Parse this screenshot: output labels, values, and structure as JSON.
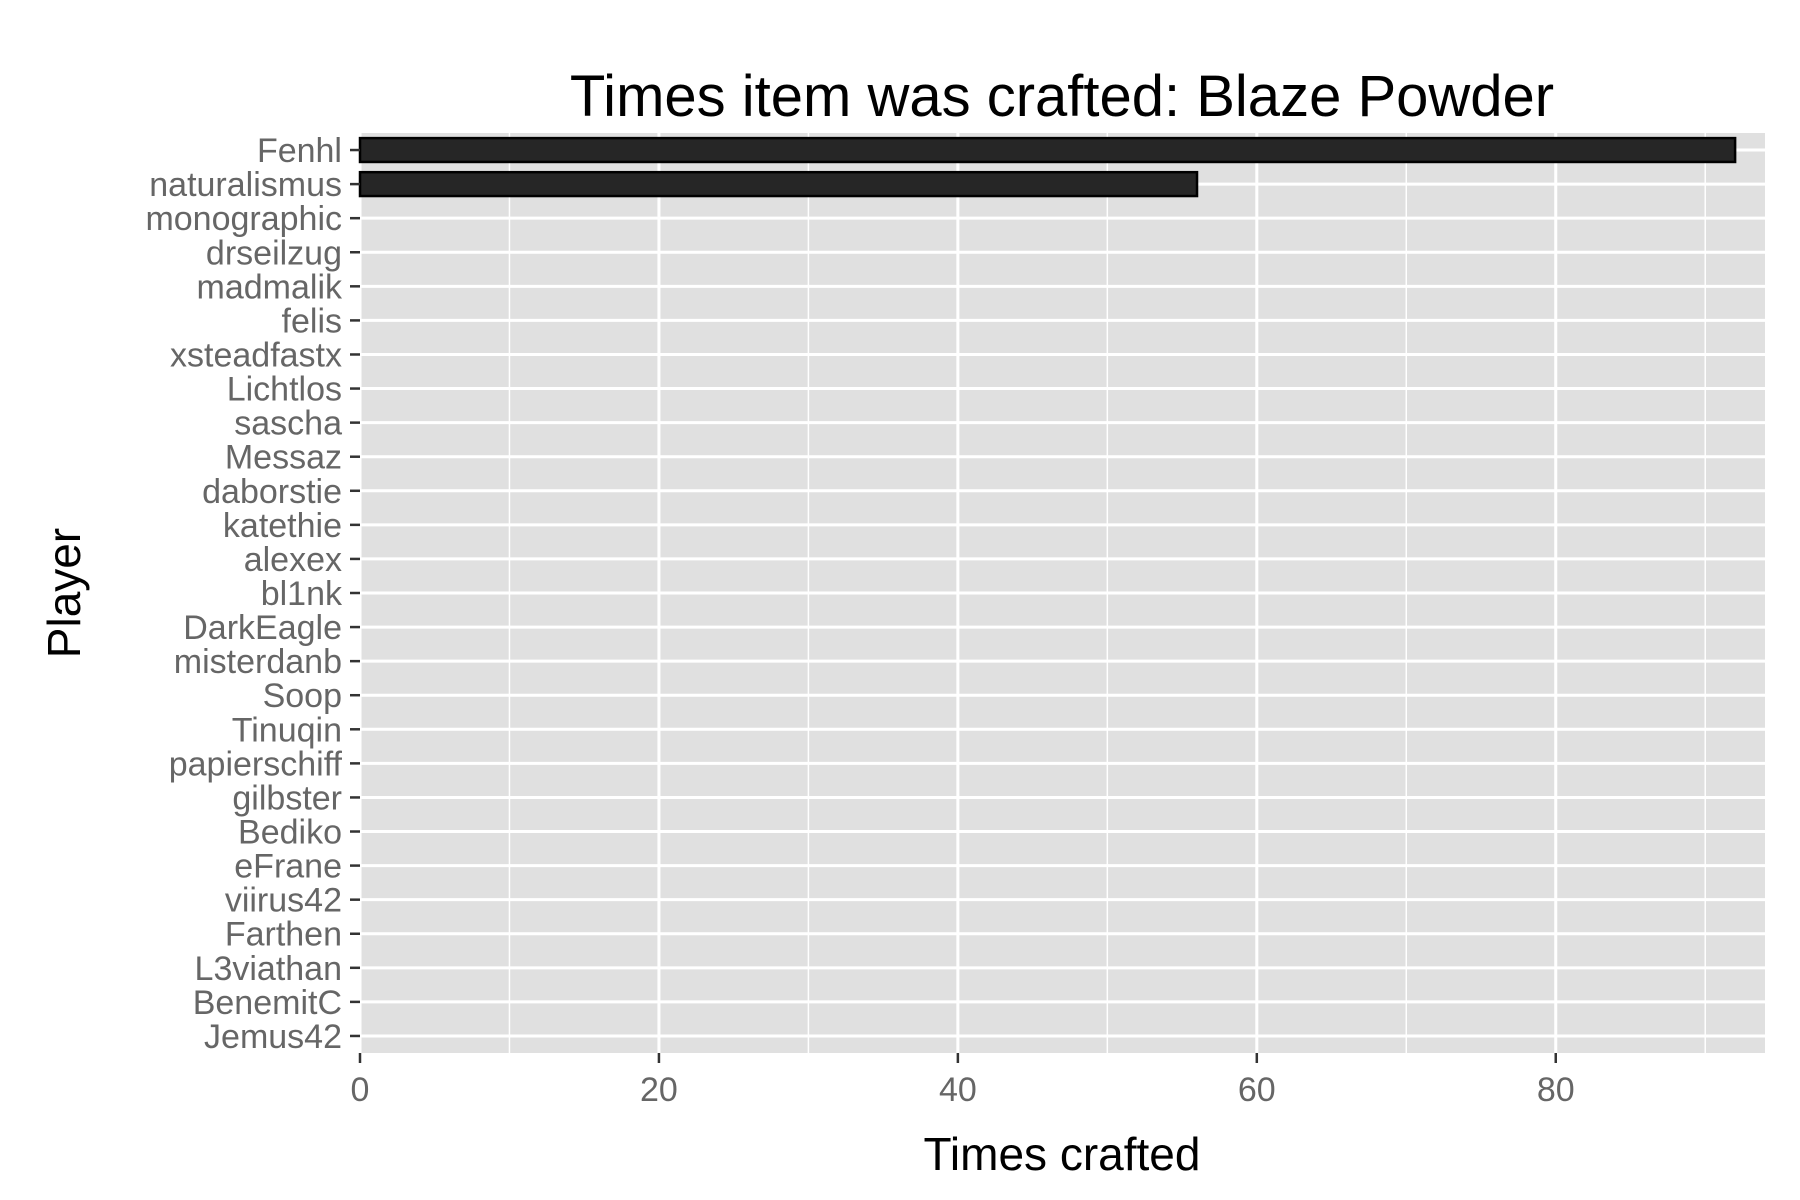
{
  "chart_data": {
    "type": "bar",
    "orientation": "horizontal",
    "title": "Times item was crafted: Blaze Powder",
    "xlabel": "Times crafted",
    "ylabel": "Player",
    "xlim": [
      0,
      94
    ],
    "xticks": [
      0,
      20,
      40,
      60,
      80
    ],
    "grid": true,
    "colors": {
      "panel": "#e0e0e0",
      "grid": "#ffffff",
      "bar_fill": "#262626",
      "bar_stroke": "#000000",
      "tick": "#333333"
    },
    "categories": [
      "Fenhl",
      "naturalismus",
      "monographic",
      "drseilzug",
      "madmalik",
      "felis",
      "xsteadfastx",
      "Lichtlos",
      "sascha",
      "Messaz",
      "daborstie",
      "katethie",
      "alexex",
      "bl1nk",
      "DarkEagle",
      "misterdanb",
      "Soop",
      "Tinuqin",
      "papierschiff",
      "gilbster",
      "Bediko",
      "eFrane",
      "viirus42",
      "Farthen",
      "L3viathan",
      "BenemitC",
      "Jemus42"
    ],
    "values": [
      92,
      56,
      0,
      0,
      0,
      0,
      0,
      0,
      0,
      0,
      0,
      0,
      0,
      0,
      0,
      0,
      0,
      0,
      0,
      0,
      0,
      0,
      0,
      0,
      0,
      0,
      0
    ]
  }
}
